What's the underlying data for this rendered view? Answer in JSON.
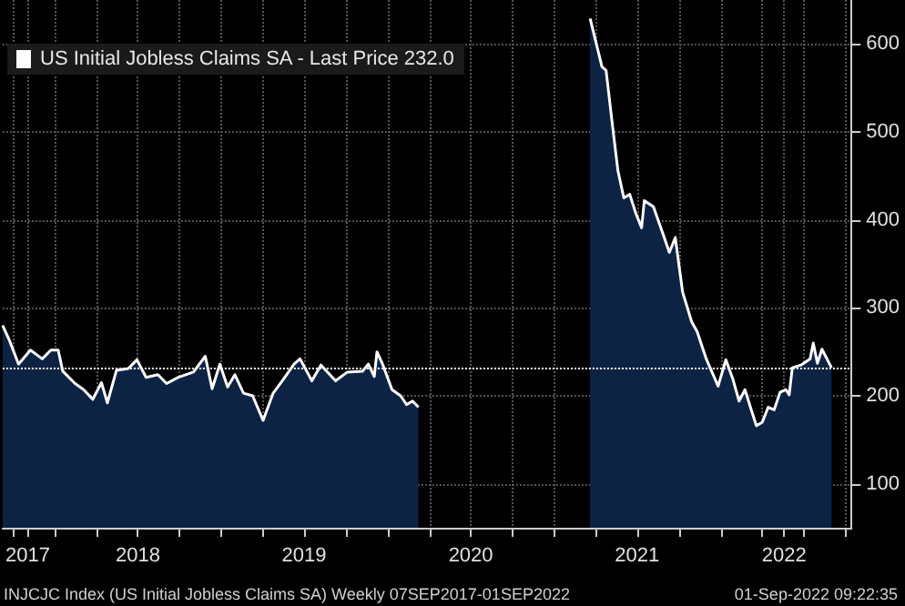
{
  "chart_data": {
    "type": "area",
    "x": [
      "2017-09-07",
      "2017-09-22",
      "2017-10-12",
      "2017-11-07",
      "2017-12-03",
      "2017-12-22",
      "2018-01-07",
      "2018-01-17",
      "2018-02-13",
      "2018-03-04",
      "2018-03-24",
      "2018-04-12",
      "2018-04-25",
      "2018-05-15",
      "2018-06-10",
      "2018-06-29",
      "2018-07-19",
      "2018-08-14",
      "2018-09-02",
      "2018-09-28",
      "2018-10-31",
      "2018-11-26",
      "2018-12-11",
      "2018-12-28",
      "2019-01-14",
      "2019-01-30",
      "2019-02-18",
      "2019-03-10",
      "2019-04-02",
      "2019-04-24",
      "2019-05-14",
      "2019-06-09",
      "2019-06-22",
      "2019-07-18",
      "2019-08-07",
      "2019-09-08",
      "2019-10-04",
      "2019-11-06",
      "2019-11-19",
      "2019-12-02",
      "2019-12-08",
      "2019-12-21",
      "2020-01-10",
      "2020-01-29",
      "2020-02-11",
      "2020-02-24",
      "2020-03-08",
      "2020-03-21",
      "2021-03-20",
      "2021-04-15",
      "2021-04-24",
      "2021-05-07",
      "2021-05-20",
      "2021-06-02",
      "2021-06-15",
      "2021-06-28",
      "2021-07-11",
      "2021-07-17",
      "2021-08-06",
      "2021-08-25",
      "2021-09-10",
      "2021-09-23",
      "2021-10-09",
      "2021-10-29",
      "2021-11-10",
      "2021-11-30",
      "2021-12-26",
      "2022-01-12",
      "2022-01-28",
      "2022-02-10",
      "2022-02-23",
      "2022-03-07",
      "2022-03-20",
      "2022-04-02",
      "2022-04-15",
      "2022-04-28",
      "2022-05-11",
      "2022-05-24",
      "2022-05-31",
      "2022-06-07",
      "2022-06-26",
      "2022-07-16",
      "2022-07-23",
      "2022-08-01",
      "2022-08-11",
      "2022-09-01"
    ],
    "series": [
      {
        "name": "US Initial Jobless Claims SA - Last Price 232.0",
        "color": "#ffffff",
        "values": [
          280,
          263,
          236,
          252,
          242,
          252,
          252,
          228,
          214,
          207,
          196,
          215,
          192,
          229,
          231,
          241,
          221,
          224,
          214,
          221,
          227,
          245,
          208,
          236,
          210,
          224,
          203,
          200,
          172,
          203,
          217,
          236,
          242,
          217,
          235,
          217,
          227,
          228,
          236,
          222,
          250,
          235,
          207,
          200,
          190,
          194,
          187,
          null,
          629,
          574,
          570,
          512,
          456,
          425,
          429,
          408,
          391,
          422,
          415,
          387,
          363,
          380,
          318,
          284,
          273,
          242,
          211,
          241,
          218,
          194,
          207,
          187,
          166,
          170,
          187,
          184,
          204,
          207,
          201,
          232,
          235,
          242,
          260,
          237,
          253,
          232
        ]
      }
    ],
    "xlim": [
      "2017-09-07",
      "2022-10-15"
    ],
    "xticks": [
      {
        "value": "2017-10-01",
        "label": null
      },
      {
        "value": "2017-11-01",
        "label": "2017"
      },
      {
        "value": "2018-01-01",
        "label": null
      },
      {
        "value": "2018-04-01",
        "label": null
      },
      {
        "value": "2018-07-01",
        "label": "2018"
      },
      {
        "value": "2018-10-01",
        "label": null
      },
      {
        "value": "2019-01-01",
        "label": null
      },
      {
        "value": "2019-04-01",
        "label": null
      },
      {
        "value": "2019-07-01",
        "label": "2019"
      },
      {
        "value": "2019-10-01",
        "label": null
      },
      {
        "value": "2020-01-01",
        "label": null
      },
      {
        "value": "2020-04-01",
        "label": null
      },
      {
        "value": "2020-07-01",
        "label": "2020"
      },
      {
        "value": "2020-10-01",
        "label": null
      },
      {
        "value": "2021-01-01",
        "label": null
      },
      {
        "value": "2021-04-01",
        "label": null
      },
      {
        "value": "2021-07-01",
        "label": "2021"
      },
      {
        "value": "2021-10-01",
        "label": null
      },
      {
        "value": "2022-01-01",
        "label": null
      },
      {
        "value": "2022-04-01",
        "label": null
      },
      {
        "value": "2022-05-20",
        "label": "2022"
      },
      {
        "value": "2022-07-01",
        "label": null
      },
      {
        "value": "2022-10-01",
        "label": null
      }
    ],
    "ylim": [
      50,
      650
    ],
    "yticks": [
      100,
      200,
      300,
      400,
      500,
      600
    ],
    "grid": true,
    "legend": "top left",
    "ref_lines": [
      {
        "axis": "y",
        "value": 232,
        "color": "#ffffff",
        "line_style": "dotted"
      }
    ],
    "annotations": [
      "INJCJC Index (US Initial Jobless Claims SA) Weekly 07SEP2017-01SEP2022",
      "01-Sep-2022 09:22:35"
    ]
  }
}
